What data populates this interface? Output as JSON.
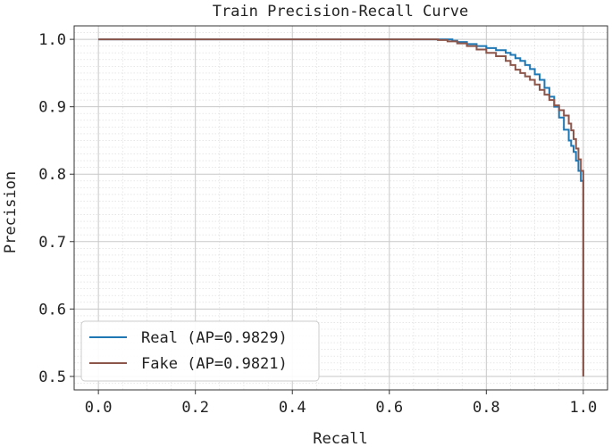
{
  "chart_data": {
    "type": "line",
    "title": "Train Precision-Recall Curve",
    "xlabel": "Recall",
    "ylabel": "Precision",
    "xlim": [
      -0.05,
      1.05
    ],
    "ylim": [
      0.48,
      1.02
    ],
    "xticks": [
      0.0,
      0.2,
      0.4,
      0.6,
      0.8,
      1.0
    ],
    "xtick_labels": [
      "0.0",
      "0.2",
      "0.4",
      "0.6",
      "0.8",
      "1.0"
    ],
    "yticks": [
      0.5,
      0.6,
      0.7,
      0.8,
      0.9,
      1.0
    ],
    "ytick_labels": [
      "0.5",
      "0.6",
      "0.7",
      "0.8",
      "0.9",
      "1.0"
    ],
    "grid": true,
    "minor_grid": true,
    "legend_position": "lower-left",
    "series": [
      {
        "name": "Real (AP=0.9829)",
        "color": "#1f77b4",
        "x": [
          0.0,
          0.7,
          0.72,
          0.73,
          0.74,
          0.76,
          0.78,
          0.8,
          0.82,
          0.84,
          0.85,
          0.86,
          0.87,
          0.88,
          0.89,
          0.9,
          0.91,
          0.92,
          0.93,
          0.94,
          0.95,
          0.96,
          0.97,
          0.975,
          0.98,
          0.985,
          0.99,
          0.995,
          1.0,
          1.0
        ],
        "y": [
          1.0,
          1.0,
          1.0,
          0.998,
          0.996,
          0.993,
          0.99,
          0.987,
          0.984,
          0.98,
          0.977,
          0.972,
          0.968,
          0.962,
          0.956,
          0.948,
          0.94,
          0.928,
          0.915,
          0.9,
          0.884,
          0.866,
          0.85,
          0.842,
          0.833,
          0.82,
          0.805,
          0.79,
          0.76,
          0.5
        ]
      },
      {
        "name": "Fake (AP=0.9821)",
        "color": "#8c564b",
        "x": [
          0.0,
          0.68,
          0.7,
          0.72,
          0.74,
          0.76,
          0.78,
          0.8,
          0.82,
          0.84,
          0.85,
          0.86,
          0.87,
          0.88,
          0.89,
          0.9,
          0.91,
          0.92,
          0.93,
          0.94,
          0.95,
          0.96,
          0.97,
          0.975,
          0.98,
          0.985,
          0.99,
          0.995,
          1.0,
          1.0
        ],
        "y": [
          1.0,
          1.0,
          0.999,
          0.997,
          0.994,
          0.99,
          0.985,
          0.98,
          0.975,
          0.968,
          0.962,
          0.955,
          0.95,
          0.945,
          0.94,
          0.933,
          0.925,
          0.918,
          0.91,
          0.902,
          0.895,
          0.887,
          0.875,
          0.865,
          0.852,
          0.838,
          0.822,
          0.805,
          0.78,
          0.5
        ]
      }
    ]
  }
}
